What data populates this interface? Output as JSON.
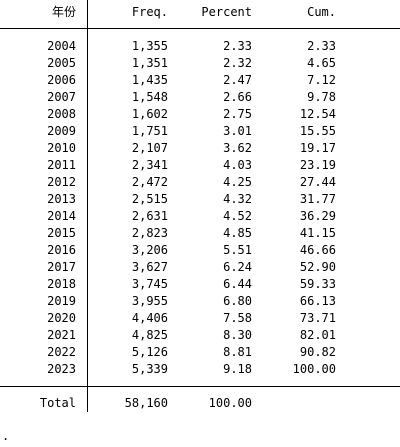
{
  "headers": {
    "year": "年份",
    "freq": "Freq.",
    "percent": "Percent",
    "cum": "Cum."
  },
  "rows": [
    {
      "year": "2004",
      "freq": "1,355",
      "percent": "2.33",
      "cum": "2.33"
    },
    {
      "year": "2005",
      "freq": "1,351",
      "percent": "2.32",
      "cum": "4.65"
    },
    {
      "year": "2006",
      "freq": "1,435",
      "percent": "2.47",
      "cum": "7.12"
    },
    {
      "year": "2007",
      "freq": "1,548",
      "percent": "2.66",
      "cum": "9.78"
    },
    {
      "year": "2008",
      "freq": "1,602",
      "percent": "2.75",
      "cum": "12.54"
    },
    {
      "year": "2009",
      "freq": "1,751",
      "percent": "3.01",
      "cum": "15.55"
    },
    {
      "year": "2010",
      "freq": "2,107",
      "percent": "3.62",
      "cum": "19.17"
    },
    {
      "year": "2011",
      "freq": "2,341",
      "percent": "4.03",
      "cum": "23.19"
    },
    {
      "year": "2012",
      "freq": "2,472",
      "percent": "4.25",
      "cum": "27.44"
    },
    {
      "year": "2013",
      "freq": "2,515",
      "percent": "4.32",
      "cum": "31.77"
    },
    {
      "year": "2014",
      "freq": "2,631",
      "percent": "4.52",
      "cum": "36.29"
    },
    {
      "year": "2015",
      "freq": "2,823",
      "percent": "4.85",
      "cum": "41.15"
    },
    {
      "year": "2016",
      "freq": "3,206",
      "percent": "5.51",
      "cum": "46.66"
    },
    {
      "year": "2017",
      "freq": "3,627",
      "percent": "6.24",
      "cum": "52.90"
    },
    {
      "year": "2018",
      "freq": "3,745",
      "percent": "6.44",
      "cum": "59.33"
    },
    {
      "year": "2019",
      "freq": "3,955",
      "percent": "6.80",
      "cum": "66.13"
    },
    {
      "year": "2020",
      "freq": "4,406",
      "percent": "7.58",
      "cum": "73.71"
    },
    {
      "year": "2021",
      "freq": "4,825",
      "percent": "8.30",
      "cum": "82.01"
    },
    {
      "year": "2022",
      "freq": "5,126",
      "percent": "8.81",
      "cum": "90.82"
    },
    {
      "year": "2023",
      "freq": "5,339",
      "percent": "9.18",
      "cum": "100.00"
    }
  ],
  "total": {
    "label": "Total",
    "freq": "58,160",
    "percent": "100.00"
  },
  "prompt": "."
}
